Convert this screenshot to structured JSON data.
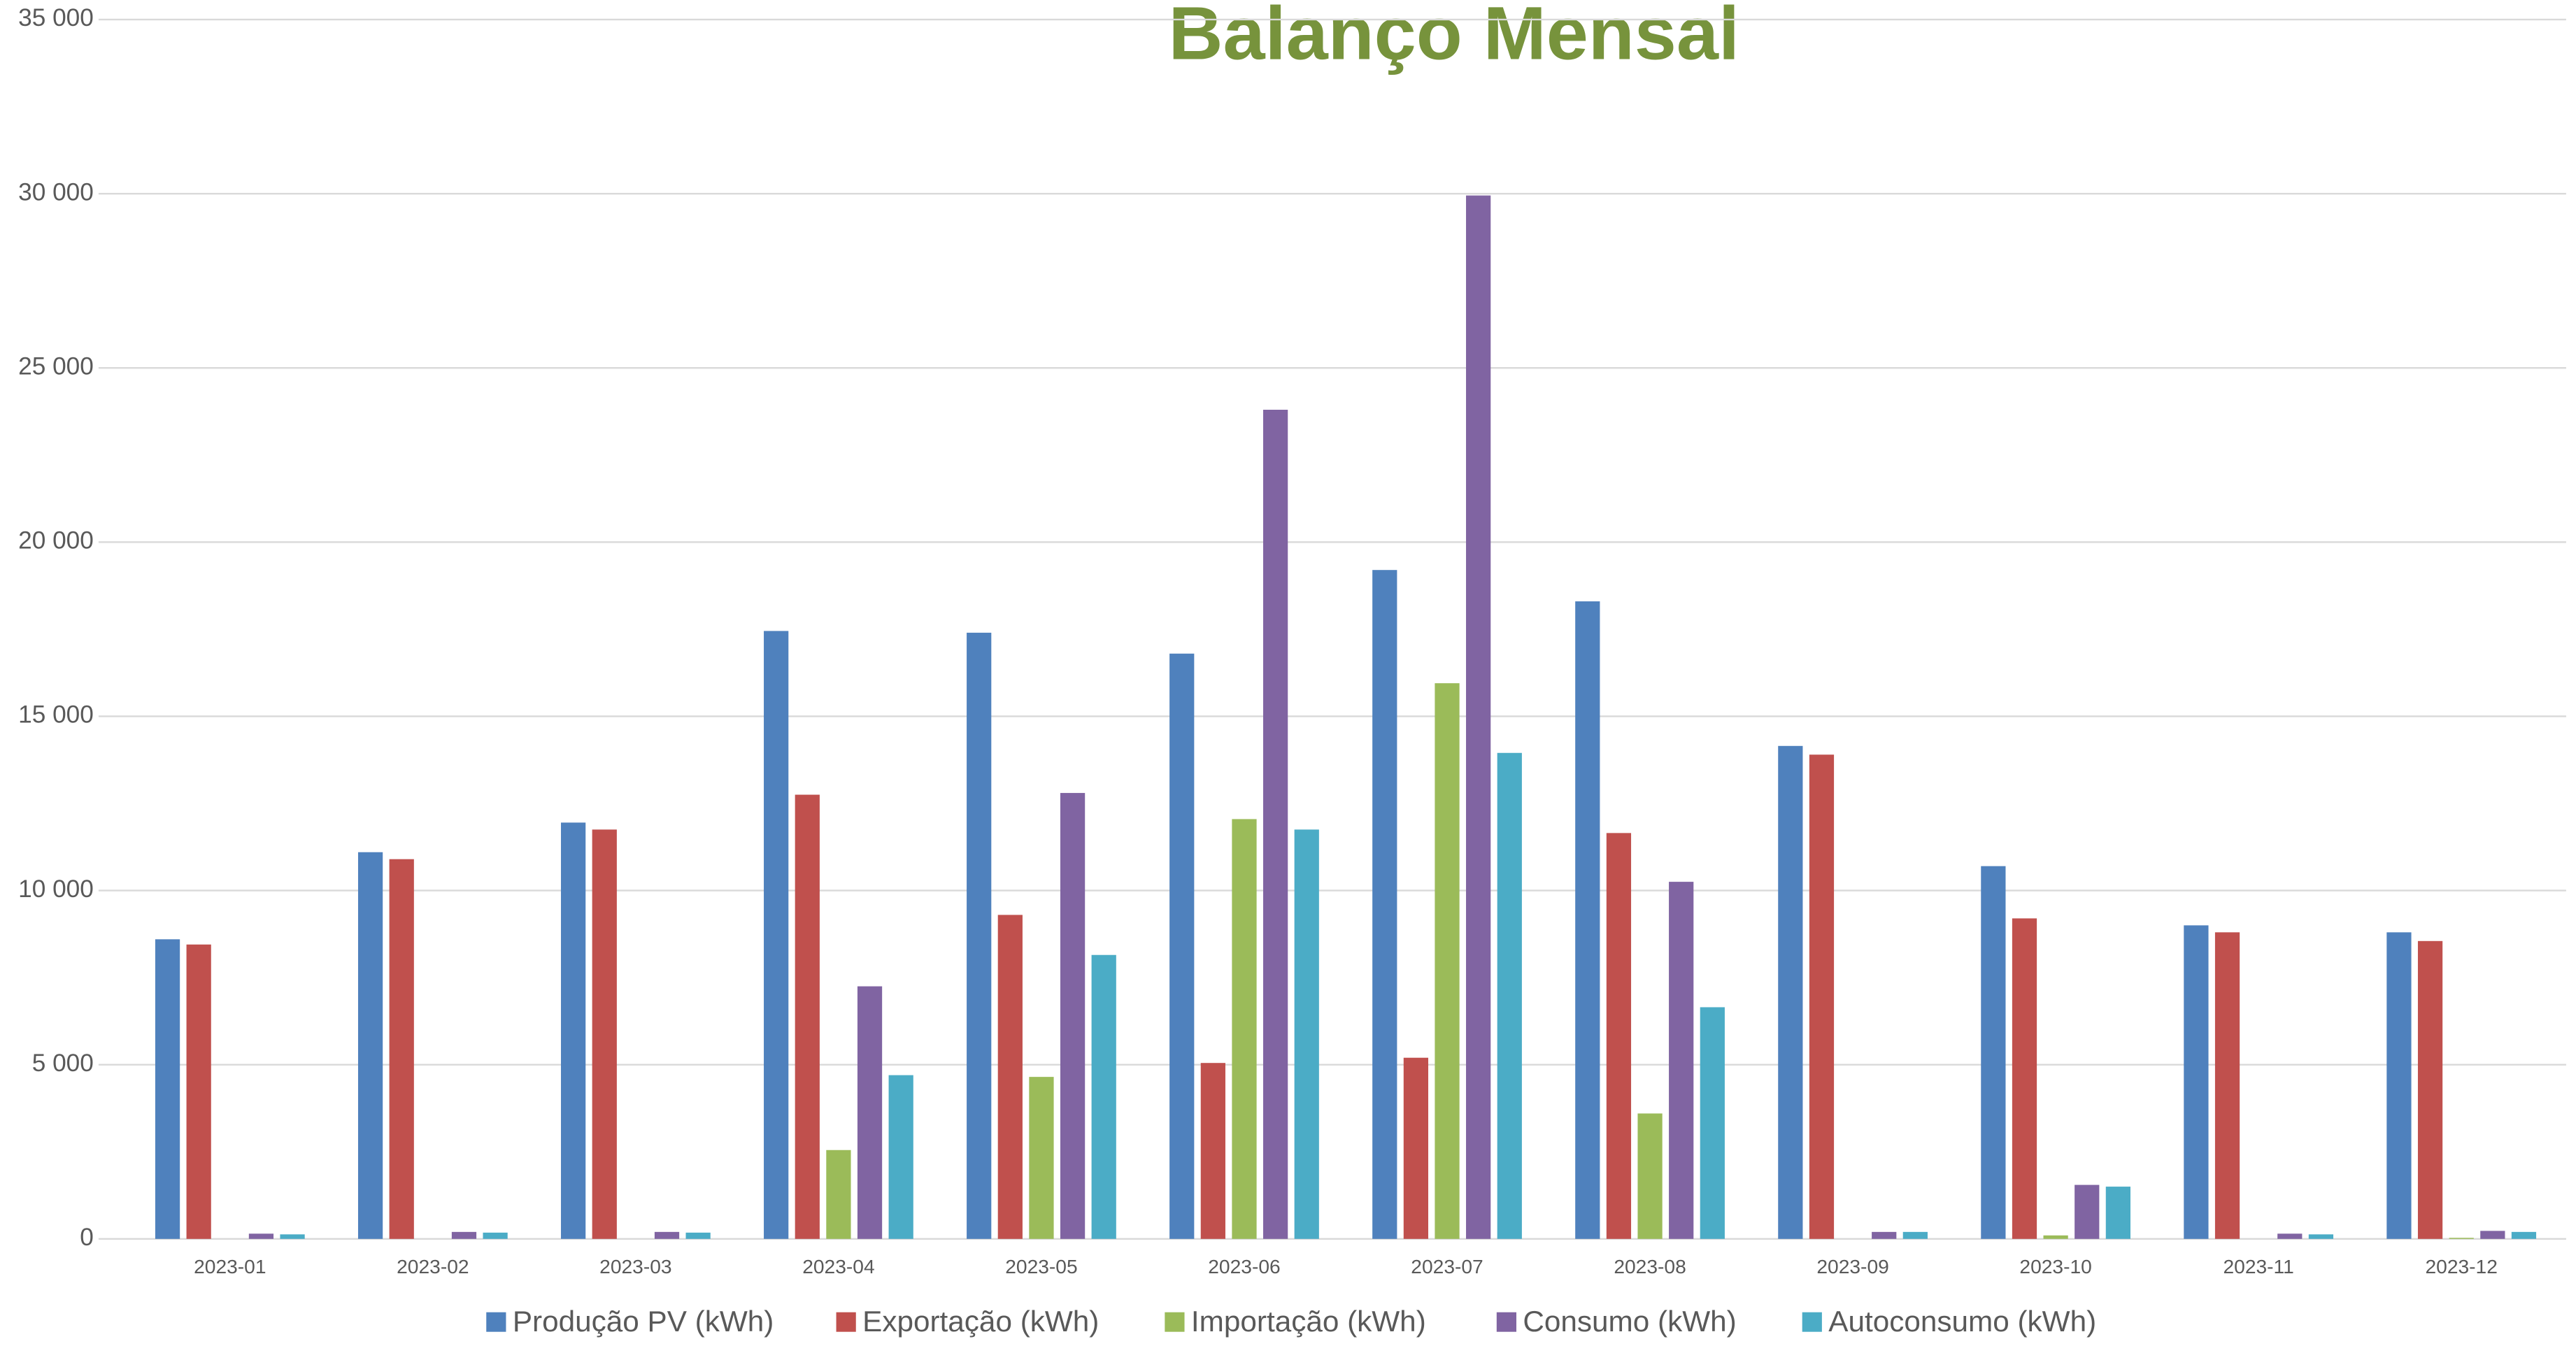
{
  "chart_data": {
    "type": "bar",
    "title": "Balanço Mensal",
    "categories": [
      "2023-01",
      "2023-02",
      "2023-03",
      "2023-04",
      "2023-05",
      "2023-06",
      "2023-07",
      "2023-08",
      "2023-09",
      "2023-10",
      "2023-11",
      "2023-12"
    ],
    "series": [
      {
        "name": "Produção PV (kWh)",
        "color": "#4f81bd",
        "values": [
          8600,
          11100,
          11950,
          17450,
          17400,
          16800,
          19200,
          18300,
          14150,
          10700,
          9000,
          8800
        ]
      },
      {
        "name": "Exportação (kWh)",
        "color": "#c0504d",
        "values": [
          8450,
          10900,
          11750,
          12750,
          9300,
          5050,
          5200,
          11650,
          13900,
          9200,
          8800,
          8550
        ]
      },
      {
        "name": "Importação (kWh)",
        "color": "#9bbb59",
        "values": [
          0,
          0,
          0,
          2550,
          4650,
          12050,
          15950,
          3600,
          0,
          100,
          0,
          30
        ]
      },
      {
        "name": "Consumo (kWh)",
        "color": "#8064a2",
        "values": [
          150,
          200,
          200,
          7250,
          12800,
          23800,
          29950,
          10250,
          200,
          1550,
          150,
          230
        ]
      },
      {
        "name": "Autoconsumo (kWh)",
        "color": "#4bacc6",
        "values": [
          130,
          180,
          180,
          4700,
          8150,
          11750,
          13950,
          6650,
          200,
          1500,
          130,
          200
        ]
      }
    ],
    "ylim": [
      0,
      35000
    ],
    "yticks": [
      0,
      {
        "value": 5000,
        "label": "5 000"
      },
      {
        "value": 10000,
        "label": "10 000"
      },
      {
        "value": 15000,
        "label": "15 000"
      },
      {
        "value": 20000,
        "label": "20 000"
      },
      {
        "value": 25000,
        "label": "25 000"
      },
      {
        "value": 30000,
        "label": "30 000"
      },
      {
        "value": 35000,
        "label": "35 000"
      }
    ],
    "grid": true,
    "legend": "bottom"
  }
}
